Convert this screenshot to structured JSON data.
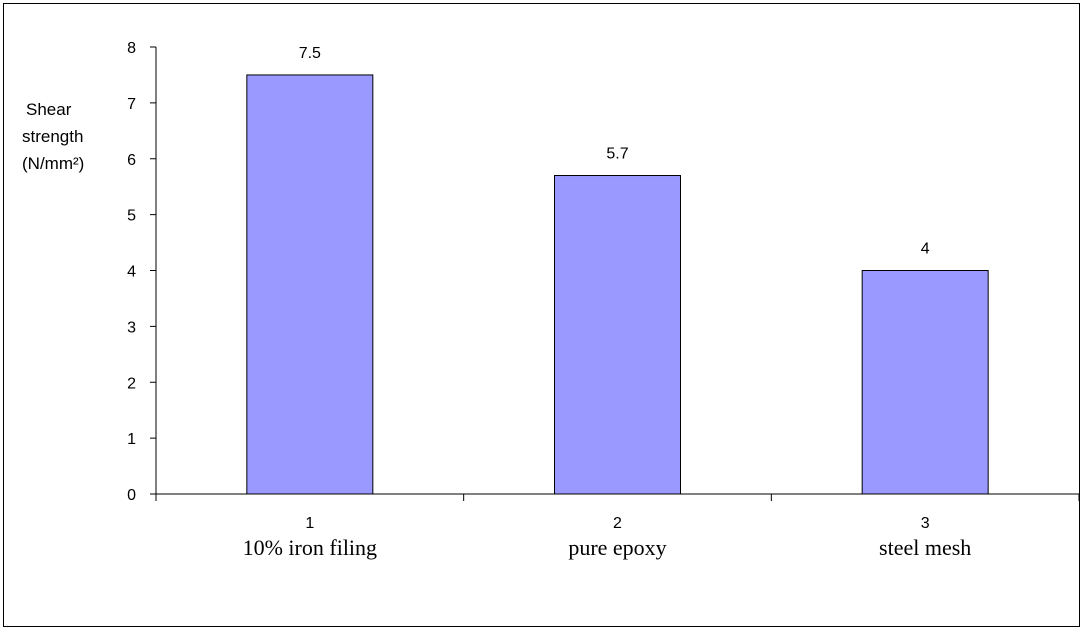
{
  "chart_data": {
    "type": "bar",
    "categories": [
      "1",
      "2",
      "3"
    ],
    "category_sublabels": [
      "10% iron filing",
      "pure epoxy",
      "steel mesh"
    ],
    "values": [
      7.5,
      5.7,
      4
    ],
    "data_labels": [
      "7.5",
      "5.7",
      "4"
    ],
    "ylabel_lines": [
      "Shear",
      "strength",
      "(N/mm²)"
    ],
    "ylim": [
      0,
      8
    ],
    "yticks": [
      0,
      1,
      2,
      3,
      4,
      5,
      6,
      7,
      8
    ],
    "grid": false,
    "legend": "none",
    "colors": {
      "bar_fill": "#9999ff",
      "bar_stroke": "#000000",
      "axis": "#000000",
      "frame": "#000000"
    }
  }
}
